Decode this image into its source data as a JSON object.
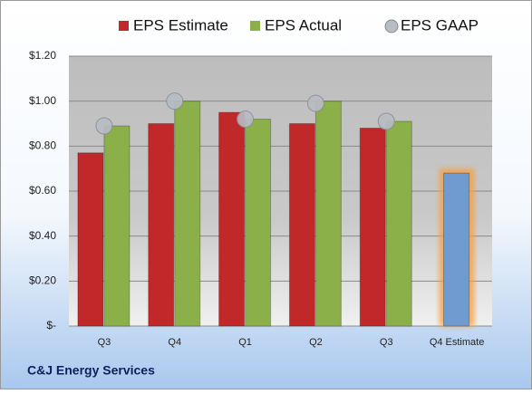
{
  "chart_data": {
    "type": "bar",
    "footer": "C&J Energy Services",
    "categories": [
      "Q3",
      "Q4",
      "Q1",
      "Q2",
      "Q3",
      "Q4 Estimate"
    ],
    "series": [
      {
        "name": "EPS Estimate",
        "type": "bar",
        "color": "#c0282a",
        "colors": [
          "#c0282a",
          "#c0282a",
          "#c0282a",
          "#c0282a",
          "#c0282a",
          "#6f9bd1"
        ],
        "values": [
          0.77,
          0.9,
          0.95,
          0.9,
          0.88,
          0.68
        ]
      },
      {
        "name": "EPS Actual",
        "type": "bar",
        "color": "#8bb04a",
        "values": [
          0.89,
          1.0,
          0.92,
          1.0,
          0.91,
          null
        ]
      },
      {
        "name": "EPS GAAP",
        "type": "scatter",
        "color": "#b8bcc4",
        "values": [
          0.89,
          1.0,
          0.92,
          0.99,
          0.91,
          null
        ]
      }
    ],
    "ylim": [
      0,
      1.2
    ],
    "yticks": [
      {
        "value": 0,
        "label": "$-"
      },
      {
        "value": 0.2,
        "label": "$0.20"
      },
      {
        "value": 0.4,
        "label": "$0.40"
      },
      {
        "value": 0.6,
        "label": "$0.60"
      },
      {
        "value": 0.8,
        "label": "$0.80"
      },
      {
        "value": 1.0,
        "label": "$1.00"
      },
      {
        "value": 1.2,
        "label": "$1.20"
      }
    ],
    "grid": true
  }
}
